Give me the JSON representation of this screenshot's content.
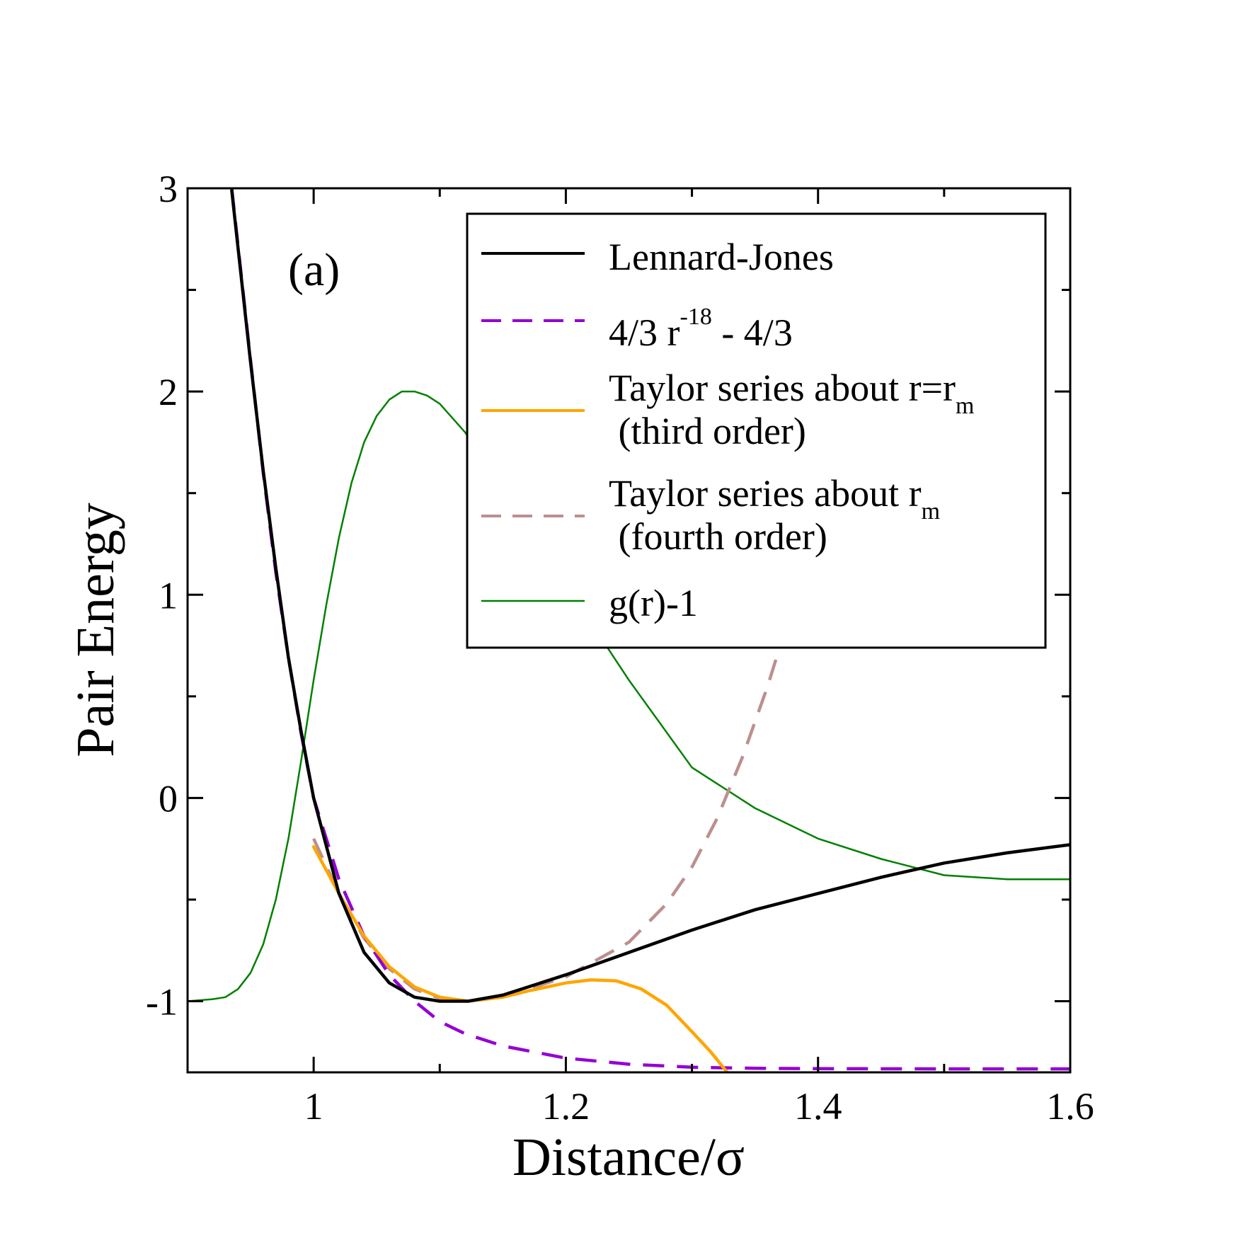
{
  "chart_data": {
    "type": "line",
    "panel_label": "(a)",
    "xlabel": "Distance/σ",
    "ylabel": "Pair Energy",
    "xlim": [
      0.9,
      1.6
    ],
    "ylim": [
      -1.35,
      3.0
    ],
    "x_ticks": [
      {
        "value": 1.0,
        "label": "1"
      },
      {
        "value": 1.2,
        "label": "1.2"
      },
      {
        "value": 1.4,
        "label": "1.4"
      },
      {
        "value": 1.6,
        "label": "1.6"
      }
    ],
    "y_ticks": [
      {
        "value": -1,
        "label": "-1"
      },
      {
        "value": 0,
        "label": "0"
      },
      {
        "value": 1,
        "label": "1"
      },
      {
        "value": 2,
        "label": "2"
      },
      {
        "value": 3,
        "label": "3"
      }
    ],
    "x_minor_ticks": [
      1.1,
      1.3,
      1.5
    ],
    "y_minor_ticks": [
      -0.5,
      0.5,
      1.5,
      2.5
    ],
    "grid": false,
    "legend_position": "top-right",
    "legend": [
      {
        "text": "Lennard-Jones"
      },
      {
        "text": "4/3 r",
        "sup": "-18",
        "tail": " - 4/3"
      },
      {
        "text": "Taylor series about r=r",
        "sub": "m",
        "line2": " (third order)"
      },
      {
        "text": "Taylor series about r",
        "sub": "m",
        "line2": " (fourth order)"
      },
      {
        "text": "g(r)-1"
      }
    ],
    "series": [
      {
        "name": "Lennard-Jones",
        "color": "#000000",
        "style": "solid",
        "x": [
          0.935,
          0.95,
          0.96,
          0.97,
          0.98,
          0.99,
          1.0,
          1.02,
          1.04,
          1.06,
          1.08,
          1.1,
          1.12246,
          1.15,
          1.2,
          1.25,
          1.3,
          1.35,
          1.4,
          1.45,
          1.5,
          1.55,
          1.6
        ],
        "y": [
          2.99,
          2.14,
          1.61,
          1.13,
          0.69,
          0.33,
          0.0,
          -0.47,
          -0.76,
          -0.91,
          -0.98,
          -1.0,
          -1.0,
          -0.97,
          -0.87,
          -0.76,
          -0.65,
          -0.55,
          -0.47,
          -0.39,
          -0.32,
          -0.27,
          -0.23
        ]
      },
      {
        "name": "4/3 r^-18 - 4/3",
        "color": "#9400d3",
        "style": "dashed",
        "x": [
          0.935,
          0.95,
          0.96,
          0.97,
          0.98,
          0.99,
          1.0,
          1.02,
          1.04,
          1.06,
          1.08,
          1.1,
          1.12,
          1.15,
          1.2,
          1.25,
          1.3,
          1.35,
          1.4,
          1.5,
          1.6
        ],
        "y": [
          3.0,
          2.15,
          1.6,
          1.11,
          0.69,
          0.32,
          0.0,
          -0.4,
          -0.68,
          -0.87,
          -1.0,
          -1.1,
          -1.16,
          -1.22,
          -1.28,
          -1.31,
          -1.325,
          -1.33,
          -1.332,
          -1.333,
          -1.333
        ]
      },
      {
        "name": "Taylor series about r=rm (third order)",
        "color": "#ffa500",
        "style": "solid",
        "x": [
          1.0,
          1.02,
          1.04,
          1.06,
          1.08,
          1.1,
          1.12246,
          1.15,
          1.17,
          1.2,
          1.22,
          1.24,
          1.26,
          1.28,
          1.3,
          1.315,
          1.328
        ],
        "y": [
          -0.24,
          -0.47,
          -0.68,
          -0.83,
          -0.93,
          -0.98,
          -1.0,
          -0.98,
          -0.95,
          -0.91,
          -0.895,
          -0.9,
          -0.94,
          -1.02,
          -1.15,
          -1.25,
          -1.35
        ]
      },
      {
        "name": "Taylor series about rm (fourth order)",
        "color": "#bc8f8f",
        "style": "dashed",
        "x": [
          1.0,
          1.02,
          1.04,
          1.06,
          1.08,
          1.1,
          1.12246,
          1.15,
          1.2,
          1.25,
          1.28,
          1.3,
          1.32,
          1.34,
          1.36,
          1.38
        ],
        "y": [
          -0.2,
          -0.47,
          -0.69,
          -0.84,
          -0.94,
          -0.985,
          -1.0,
          -0.98,
          -0.88,
          -0.71,
          -0.52,
          -0.34,
          -0.1,
          0.2,
          0.55,
          0.95
        ]
      },
      {
        "name": "g(r)-1",
        "color": "#008000",
        "style": "solid",
        "x": [
          0.9,
          0.92,
          0.93,
          0.94,
          0.95,
          0.96,
          0.97,
          0.98,
          0.99,
          1.0,
          1.01,
          1.02,
          1.03,
          1.04,
          1.05,
          1.06,
          1.07,
          1.08,
          1.09,
          1.1,
          1.12,
          1.15,
          1.2,
          1.25,
          1.3,
          1.35,
          1.4,
          1.45,
          1.5,
          1.55,
          1.6
        ],
        "y": [
          -1.0,
          -0.99,
          -0.98,
          -0.94,
          -0.86,
          -0.72,
          -0.5,
          -0.2,
          0.18,
          0.58,
          0.95,
          1.28,
          1.55,
          1.75,
          1.88,
          1.96,
          2.0,
          2.0,
          1.98,
          1.94,
          1.8,
          1.53,
          1.05,
          0.58,
          0.15,
          -0.05,
          -0.2,
          -0.3,
          -0.38,
          -0.4,
          -0.4
        ]
      }
    ]
  }
}
